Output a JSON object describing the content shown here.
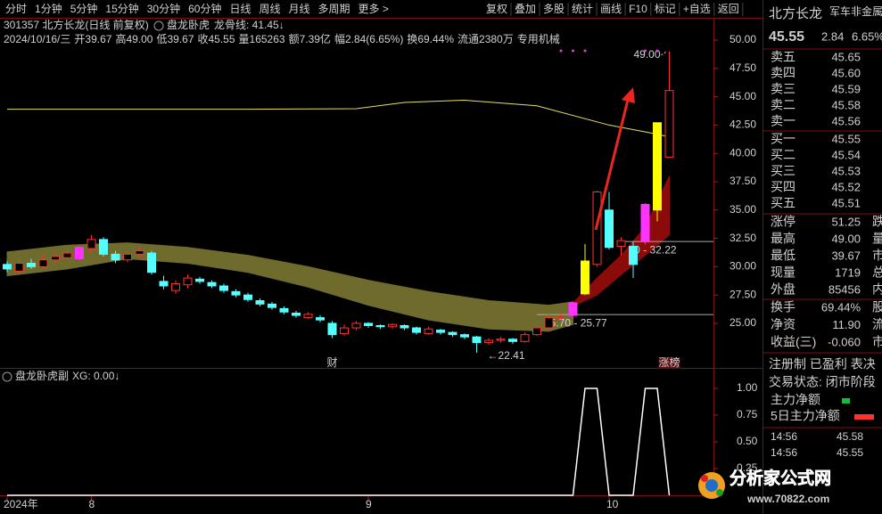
{
  "toolbar": {
    "periods": [
      "分时",
      "1分钟",
      "5分钟",
      "15分钟",
      "30分钟",
      "60分钟",
      "日线",
      "周线",
      "月线",
      "多周期",
      "更多 >"
    ],
    "active": "日线",
    "tools": [
      "复权",
      "叠加",
      "多股",
      "统计",
      "画线",
      "F10",
      "标记",
      "+自选",
      "返回"
    ]
  },
  "chart_data": [
    {
      "type": "candlestick",
      "name_line": "301357 北方长龙(日线 前复权)",
      "indicator": "盘龙卧虎",
      "indicator_value": "龙骨线: 41.45↓",
      "info": [
        {
          "text": "2024/10/16/三",
          "color": "#d0d0d0"
        },
        {
          "text": "开39.67",
          "color": "#3ec43e"
        },
        {
          "text": "高49.00",
          "color": "#ff3232"
        },
        {
          "text": "低39.67",
          "color": "#3ec43e"
        },
        {
          "text": "收45.55",
          "color": "#ff3232"
        },
        {
          "text": "量165263",
          "color": "#e0e0e0"
        },
        {
          "text": "额7.39亿",
          "color": "#e0e0e0"
        },
        {
          "text": "幅2.84(6.65%)",
          "color": "#ff3232"
        },
        {
          "text": "换69.44%",
          "color": "#e0e0e0"
        },
        {
          "text": "流通2380万",
          "color": "#e0e0e0"
        },
        {
          "text": "专用机械",
          "color": "#e8b060"
        }
      ],
      "up_color": "#ff3232",
      "down_color": "#54ffff",
      "candles": [
        {
          "open": 30.2,
          "high": 30.5,
          "low": 29.5,
          "close": 29.8
        },
        {
          "open": 29.6,
          "high": 30.6,
          "low": 29.3,
          "close": 30.3
        },
        {
          "open": 30.3,
          "high": 30.7,
          "low": 29.8,
          "close": 30.0
        },
        {
          "open": 30.0,
          "high": 31.0,
          "low": 29.8,
          "close": 30.6
        },
        {
          "open": 30.6,
          "high": 31.2,
          "low": 30.3,
          "close": 30.9
        },
        {
          "open": 30.8,
          "high": 31.5,
          "low": 30.6,
          "close": 31.2
        },
        {
          "open": 30.7,
          "high": 31.8,
          "low": 30.6,
          "close": 31.7,
          "color": "#ff33ff"
        },
        {
          "open": 31.6,
          "high": 32.8,
          "low": 31.3,
          "close": 32.4
        },
        {
          "open": 32.4,
          "high": 32.6,
          "low": 30.9,
          "close": 31.1
        },
        {
          "open": 31.1,
          "high": 31.4,
          "low": 30.3,
          "close": 30.6
        },
        {
          "open": 30.6,
          "high": 31.3,
          "low": 30.4,
          "close": 31.1
        },
        {
          "open": 31.1,
          "high": 31.7,
          "low": 30.8,
          "close": 31.4
        },
        {
          "open": 31.2,
          "high": 31.4,
          "low": 29.3,
          "close": 29.5
        },
        {
          "open": 28.7,
          "high": 29.2,
          "low": 28.0,
          "close": 28.3
        },
        {
          "open": 27.9,
          "high": 28.8,
          "low": 27.6,
          "close": 28.5
        },
        {
          "open": 28.4,
          "high": 29.3,
          "low": 28.1,
          "close": 29.0
        },
        {
          "open": 28.9,
          "high": 29.1,
          "low": 28.5,
          "close": 28.7
        },
        {
          "open": 28.6,
          "high": 28.8,
          "low": 28.1,
          "close": 28.3
        },
        {
          "open": 28.3,
          "high": 28.5,
          "low": 27.7,
          "close": 27.9
        },
        {
          "open": 27.8,
          "high": 28.0,
          "low": 27.3,
          "close": 27.5
        },
        {
          "open": 27.5,
          "high": 27.7,
          "low": 26.9,
          "close": 27.1
        },
        {
          "open": 27.0,
          "high": 27.2,
          "low": 26.5,
          "close": 26.7
        },
        {
          "open": 26.7,
          "high": 26.9,
          "low": 26.2,
          "close": 26.4
        },
        {
          "open": 26.3,
          "high": 26.5,
          "low": 25.8,
          "close": 26.0
        },
        {
          "open": 25.9,
          "high": 26.1,
          "low": 25.5,
          "close": 25.7
        },
        {
          "open": 25.5,
          "high": 26.0,
          "low": 25.4,
          "close": 25.8
        },
        {
          "open": 25.5,
          "high": 25.7,
          "low": 25.1,
          "close": 25.3
        },
        {
          "open": 25.0,
          "high": 25.2,
          "low": 23.7,
          "close": 24.0
        },
        {
          "open": 24.1,
          "high": 24.9,
          "low": 23.9,
          "close": 24.6
        },
        {
          "open": 24.6,
          "high": 25.2,
          "low": 24.4,
          "close": 25.0
        },
        {
          "open": 25.0,
          "high": 25.1,
          "low": 24.6,
          "close": 24.8
        },
        {
          "open": 24.8,
          "high": 24.9,
          "low": 24.5,
          "close": 24.7
        },
        {
          "open": 24.7,
          "high": 25.0,
          "low": 24.5,
          "close": 24.9
        },
        {
          "open": 24.8,
          "high": 24.9,
          "low": 24.4,
          "close": 24.6
        },
        {
          "open": 24.6,
          "high": 24.7,
          "low": 24.0,
          "close": 24.2
        },
        {
          "open": 24.1,
          "high": 24.7,
          "low": 24.0,
          "close": 24.5
        },
        {
          "open": 24.4,
          "high": 24.5,
          "low": 24.0,
          "close": 24.2
        },
        {
          "open": 24.2,
          "high": 24.3,
          "low": 23.8,
          "close": 24.0
        },
        {
          "open": 24.0,
          "high": 24.1,
          "low": 23.6,
          "close": 23.8
        },
        {
          "open": 23.8,
          "high": 23.9,
          "low": 22.41,
          "close": 23.3
        },
        {
          "open": 23.3,
          "high": 23.7,
          "low": 23.1,
          "close": 23.5
        },
        {
          "open": 23.5,
          "high": 23.8,
          "low": 23.3,
          "close": 23.6
        },
        {
          "open": 23.6,
          "high": 23.7,
          "low": 23.2,
          "close": 23.4
        },
        {
          "open": 23.4,
          "high": 24.2,
          "low": 23.3,
          "close": 24.0
        },
        {
          "open": 24.0,
          "high": 24.8,
          "low": 23.9,
          "close": 24.6
        },
        {
          "open": 24.6,
          "high": 25.8,
          "low": 24.5,
          "close": 25.5
        },
        {
          "open": 25.5,
          "high": 25.9,
          "low": 25.3,
          "close": 25.6
        },
        {
          "open": 25.7,
          "high": 26.9,
          "low": 25.6,
          "close": 26.8,
          "color": "#ff33ff"
        },
        {
          "open": 27.6,
          "high": 32.0,
          "low": 27.5,
          "close": 30.5,
          "color": "#ffff00"
        },
        {
          "open": 30.2,
          "high": 36.7,
          "low": 30.0,
          "close": 36.6
        },
        {
          "open": 35.0,
          "high": 36.6,
          "low": 31.5,
          "close": 31.7
        },
        {
          "open": 31.8,
          "high": 32.6,
          "low": 31.0,
          "close": 32.3
        },
        {
          "open": 31.8,
          "high": 32.2,
          "low": 29.0,
          "close": 30.2
        },
        {
          "open": 32.2,
          "high": 35.6,
          "low": 32.0,
          "close": 35.5,
          "color": "#ff33ff"
        },
        {
          "open": 35.0,
          "high": 42.71,
          "low": 34.0,
          "close": 42.71,
          "color": "#ffff00"
        },
        {
          "open": 39.67,
          "high": 49.0,
          "low": 39.67,
          "close": 45.55
        }
      ],
      "ylim": [
        21.3,
        51.97
      ],
      "yticks": [
        {
          "value": 50,
          "label": "50.00"
        },
        {
          "value": 47.5,
          "label": "47.50"
        },
        {
          "value": 45,
          "label": "45.00"
        },
        {
          "value": 42.5,
          "label": "42.50"
        },
        {
          "value": 40,
          "label": "40.00"
        },
        {
          "value": 37.5,
          "label": "37.50"
        },
        {
          "value": 35,
          "label": "35.00"
        },
        {
          "value": 32.5,
          "label": "32.50"
        },
        {
          "value": 30,
          "label": "30.00"
        },
        {
          "value": 27.5,
          "label": "27.50"
        },
        {
          "value": 25,
          "label": "25.00"
        }
      ],
      "band": {
        "color": "#6e6b2c",
        "x": [
          0,
          5,
          10,
          15,
          20,
          25,
          30,
          35,
          40,
          45,
          47
        ],
        "upper": [
          31.3,
          31.9,
          32.1,
          31.7,
          31.0,
          30.0,
          28.8,
          27.8,
          27.0,
          26.6,
          26.9
        ],
        "lower": [
          29.2,
          29.8,
          30.7,
          30.3,
          29.5,
          28.2,
          26.6,
          25.3,
          24.5,
          24.3,
          24.9
        ]
      },
      "band2": {
        "color": "#8b0a0a",
        "x": [
          47,
          49,
          51,
          53,
          55
        ],
        "upper": [
          26.8,
          29.0,
          31.0,
          33.5,
          38.0
        ],
        "lower": [
          26.5,
          27.5,
          29.3,
          31.0,
          32.8
        ]
      },
      "line": {
        "color": "#e8e060",
        "x": [
          0,
          10,
          20,
          29,
          33,
          38,
          44,
          50,
          54,
          55
        ],
        "values": [
          43.9,
          43.9,
          43.9,
          43.95,
          44.5,
          44.7,
          44.2,
          42.5,
          41.7,
          41.45
        ]
      },
      "levels": [
        {
          "index": 44,
          "value": 25.77,
          "label": "25.70 - 25.77"
        },
        {
          "index": 51,
          "value": 32.22,
          "label": "00 - 32.22"
        }
      ],
      "high_label": {
        "index": 55,
        "value": 49.0,
        "label": "49.00"
      },
      "low_label": {
        "index": 39,
        "value": 22.41,
        "label": "←22.41"
      },
      "markers": [
        {
          "index": 27,
          "label": "财"
        },
        {
          "index": 55,
          "label": "涨榜"
        }
      ],
      "dots": {
        "color": "#e040e0",
        "indexes": [
          46,
          47,
          48,
          53,
          54
        ]
      }
    },
    {
      "type": "line",
      "title": "盘龙卧虎副",
      "legend": "XG: 0.00↓",
      "color": "#ffffff",
      "values": [
        0,
        0,
        0,
        0,
        0,
        0,
        0,
        0,
        0,
        0,
        0,
        0,
        0,
        0,
        0,
        0,
        0,
        0,
        0,
        0,
        0,
        0,
        0,
        0,
        0,
        0,
        0,
        0,
        0,
        0,
        0,
        0,
        0,
        0,
        0,
        0,
        0,
        0,
        0,
        0,
        0,
        0,
        0,
        0,
        0,
        0,
        0,
        0,
        1,
        1,
        0,
        0,
        0,
        1,
        1,
        0
      ],
      "ylim": [
        0,
        1.15
      ],
      "yticks": [
        {
          "value": 1,
          "label": "1.00"
        },
        {
          "value": 0.75,
          "label": "0.75"
        },
        {
          "value": 0.5,
          "label": "0.50"
        },
        {
          "value": 0.25,
          "label": "0.25"
        }
      ],
      "xlabels": [
        {
          "index": 0,
          "label": "2024年"
        },
        {
          "index": 7,
          "label": "8"
        },
        {
          "index": 30,
          "label": "9"
        },
        {
          "index": 50,
          "label": "10"
        }
      ]
    }
  ],
  "quote": {
    "name": "北方长龙",
    "sector": "军车非金属材",
    "price": "45.55",
    "change": "2.84",
    "pct": "6.65%",
    "asks": [
      {
        "label": "卖五",
        "price": "45.65"
      },
      {
        "label": "卖四",
        "price": "45.60"
      },
      {
        "label": "卖三",
        "price": "45.59"
      },
      {
        "label": "卖二",
        "price": "45.58"
      },
      {
        "label": "卖一",
        "price": "45.56"
      }
    ],
    "bids": [
      {
        "label": "买一",
        "price": "45.55"
      },
      {
        "label": "买二",
        "price": "45.54"
      },
      {
        "label": "买三",
        "price": "45.53"
      },
      {
        "label": "买四",
        "price": "45.52"
      },
      {
        "label": "买五",
        "price": "45.51"
      }
    ],
    "stats": [
      {
        "label": "涨停",
        "value": "51.25",
        "color": "#ff3232",
        "extra": "跌"
      },
      {
        "label": "最高",
        "value": "49.00",
        "color": "#ff3232",
        "extra": "量"
      },
      {
        "label": "最低",
        "value": "39.67",
        "color": "#3ec43e",
        "extra": "市"
      },
      {
        "label": "现量",
        "value": "1719",
        "color": "#ff44ff",
        "extra": "总"
      },
      {
        "label": "外盘",
        "value": "85456",
        "color": "#ff3232",
        "extra": "内"
      },
      {
        "label": "换手",
        "value": "69.44%",
        "color": "#e0e0e0",
        "extra": "股"
      },
      {
        "label": "净资",
        "value": "11.90",
        "color": "#e0e0e0",
        "extra": "流"
      },
      {
        "label": "收益(三)",
        "value": "-0.060",
        "color": "#e0e0e0",
        "extra": "市"
      }
    ],
    "note": "注册制 已盈利 表决",
    "status": "交易状态: 闭市阶段",
    "flows": [
      {
        "label": "主力净额",
        "color": "#1eb83c"
      },
      {
        "label": "5日主力净额",
        "color": "#ff3232"
      }
    ],
    "ticks": [
      {
        "time": "14:56",
        "price": "45.58"
      },
      {
        "time": "14:56",
        "price": "45.55"
      }
    ]
  },
  "watermark": {
    "title": "分析家公式网",
    "url": "www.70822.com"
  }
}
